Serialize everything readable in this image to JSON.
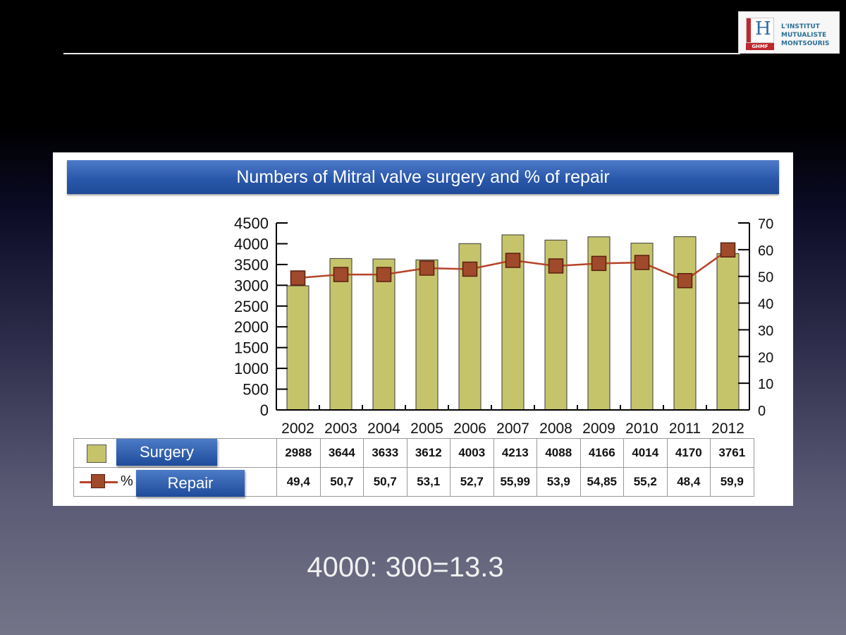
{
  "logo": {
    "letter": "H",
    "strip": "GHMF",
    "lines": [
      "L'INSTITUT",
      "MUTUALISTE",
      "MONTSOURIS"
    ]
  },
  "chart_data": {
    "type": "bar",
    "title": "Numbers of Mitral valve surgery and % of repair",
    "categories": [
      "2002",
      "2003",
      "2004",
      "2005",
      "2006",
      "2007",
      "2008",
      "2009",
      "2010",
      "2011",
      "2012"
    ],
    "series": [
      {
        "name": "Surgery",
        "type": "bar",
        "axis": "left",
        "values": [
          2988,
          3644,
          3633,
          3612,
          4003,
          4213,
          4088,
          4166,
          4014,
          4170,
          3761
        ],
        "color": "#c6c46b"
      },
      {
        "name": "Repair",
        "type": "line",
        "axis": "right",
        "values": [
          49.4,
          50.7,
          50.7,
          53.1,
          52.7,
          55.99,
          53.9,
          54.85,
          55.2,
          48.4,
          59.9
        ],
        "color": "#b54328"
      }
    ],
    "left_axis": {
      "min": 0,
      "max": 4500,
      "ticks": [
        "0",
        "500",
        "1000",
        "1500",
        "2000",
        "2500",
        "3000",
        "3500",
        "4000",
        "4500"
      ]
    },
    "right_axis": {
      "min": 0,
      "max": 70,
      "ticks": [
        "0",
        "10",
        "20",
        "30",
        "40",
        "50",
        "60",
        "70"
      ]
    },
    "grid": false
  },
  "table": {
    "surgery_label": "Surgery",
    "repair_symbol": "%",
    "repair_label": "Repair",
    "surgery_values": [
      "2988",
      "3644",
      "3633",
      "3612",
      "4003",
      "4213",
      "4088",
      "4166",
      "4014",
      "4170",
      "3761"
    ],
    "repair_values": [
      "49,4",
      "50,7",
      "50,7",
      "53,1",
      "52,7",
      "55,99",
      "53,9",
      "54,85",
      "55,2",
      "48,4",
      "59,9"
    ]
  },
  "bottom_note": "4000: 300=13.3"
}
